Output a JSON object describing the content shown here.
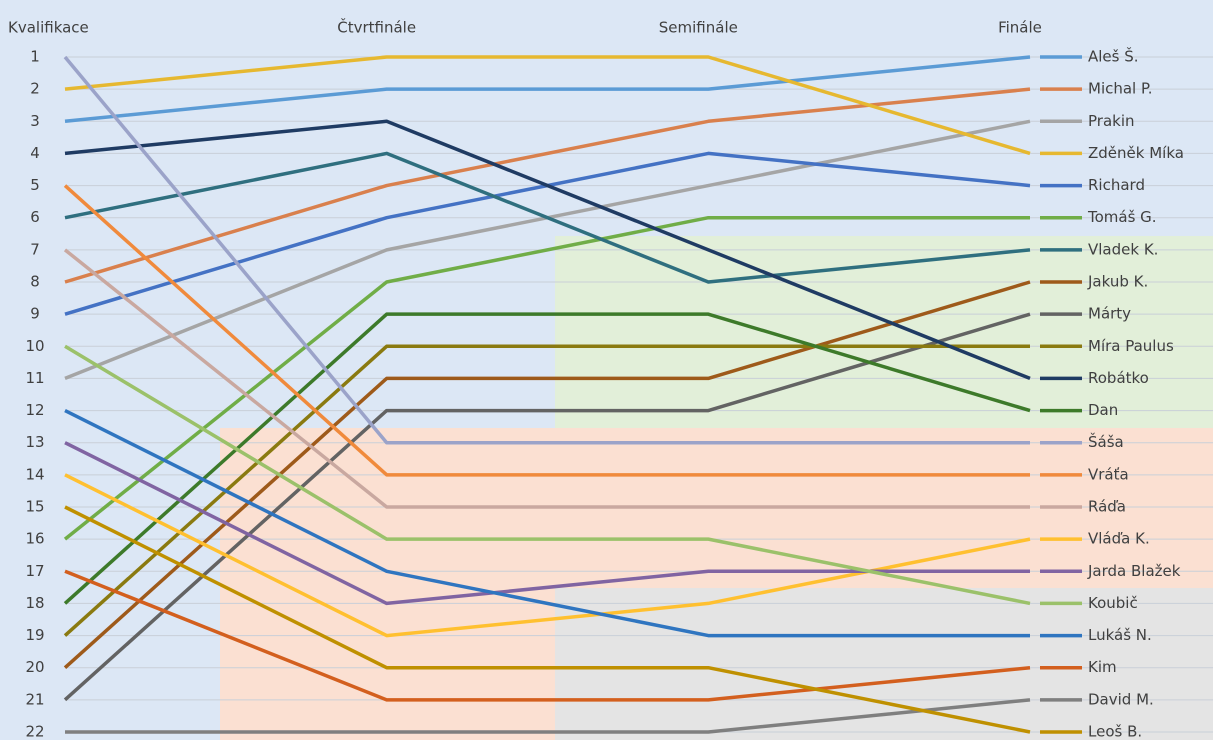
{
  "chart_data": {
    "type": "line",
    "categories": [
      "Kvalifikace",
      "Čtvrtfinále",
      "Semifinále",
      "Finále"
    ],
    "ylim": [
      1,
      22
    ],
    "yticks": [
      1,
      2,
      3,
      4,
      5,
      6,
      7,
      8,
      9,
      10,
      11,
      12,
      13,
      14,
      15,
      16,
      17,
      18,
      19,
      20,
      21,
      22
    ],
    "y_reversed": true,
    "grid": true,
    "legend": "right",
    "series": [
      {
        "name": "Aleš Š.",
        "color": "#5b9bd5",
        "values": [
          3,
          2,
          2,
          1
        ]
      },
      {
        "name": "Michal P.",
        "color": "#d9804d",
        "values": [
          8,
          5,
          3,
          2
        ]
      },
      {
        "name": "Prakin",
        "color": "#a5a5a5",
        "values": [
          11,
          7,
          5,
          3
        ]
      },
      {
        "name": "Zděněk Míka",
        "color": "#e6b830",
        "values": [
          2,
          1,
          1,
          4
        ]
      },
      {
        "name": "Richard",
        "color": "#4472c4",
        "values": [
          9,
          6,
          4,
          5
        ]
      },
      {
        "name": "Tomáš G.",
        "color": "#70ad47",
        "values": [
          16,
          8,
          6,
          6
        ]
      },
      {
        "name": "Vladek K.",
        "color": "#2f6f7f",
        "values": [
          6,
          4,
          8,
          7
        ]
      },
      {
        "name": "Jakub K.",
        "color": "#9e5a1a",
        "values": [
          20,
          11,
          11,
          8
        ]
      },
      {
        "name": "Márty",
        "color": "#636363",
        "values": [
          21,
          12,
          12,
          9
        ]
      },
      {
        "name": "Míra Paulus",
        "color": "#8a7a10",
        "values": [
          19,
          10,
          10,
          10
        ]
      },
      {
        "name": "Robátko",
        "color": "#1f3b63",
        "values": [
          4,
          3,
          7,
          11
        ]
      },
      {
        "name": "Dan",
        "color": "#3d7a2a",
        "values": [
          18,
          9,
          9,
          12
        ]
      },
      {
        "name": "Šáša",
        "color": "#9ba3c9",
        "values": [
          1,
          13,
          13,
          13
        ]
      },
      {
        "name": "Vráťa",
        "color": "#f08a3c",
        "values": [
          5,
          14,
          14,
          14
        ]
      },
      {
        "name": "Ráďa",
        "color": "#c9a8a0",
        "values": [
          7,
          15,
          15,
          15
        ]
      },
      {
        "name": "Vláďa K.",
        "color": "#ffc030",
        "values": [
          14,
          19,
          18,
          16
        ]
      },
      {
        "name": "Jarda Blažek",
        "color": "#8064a2",
        "values": [
          13,
          18,
          17,
          17
        ]
      },
      {
        "name": "Koubič",
        "color": "#9bc16a",
        "values": [
          10,
          16,
          16,
          18
        ]
      },
      {
        "name": "Lukáš N.",
        "color": "#2f75c0",
        "values": [
          12,
          17,
          19,
          19
        ]
      },
      {
        "name": "Kim",
        "color": "#d35f1e",
        "values": [
          17,
          21,
          21,
          20
        ]
      },
      {
        "name": "David M.",
        "color": "#7f7f7f",
        "values": [
          22,
          22,
          22,
          21
        ]
      },
      {
        "name": "Leoš B.",
        "color": "#bf9000",
        "values": [
          15,
          20,
          20,
          22
        ]
      }
    ]
  }
}
